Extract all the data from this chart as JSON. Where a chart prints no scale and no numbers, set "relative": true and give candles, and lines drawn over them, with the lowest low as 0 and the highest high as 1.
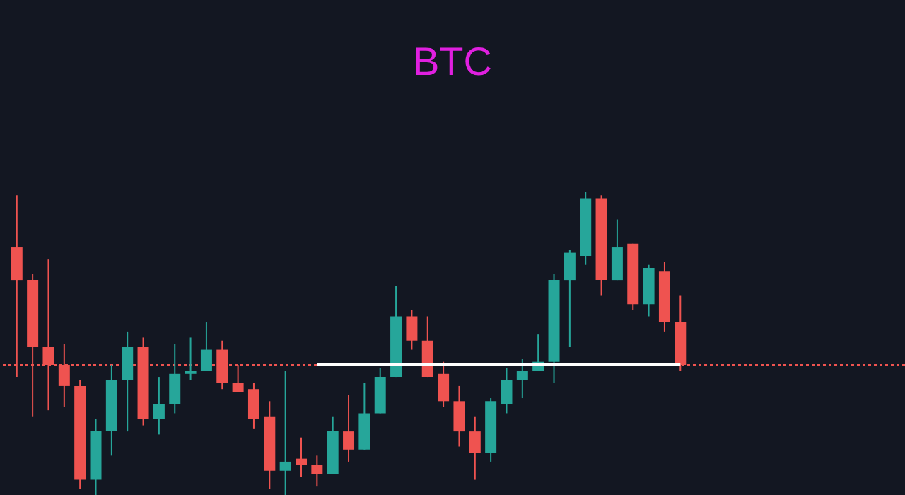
{
  "chart_data": {
    "type": "candlestick",
    "title": "BTC",
    "relative": true,
    "categories": [
      null,
      null,
      null,
      null,
      null,
      null,
      null,
      null,
      null,
      null,
      null,
      null,
      null,
      null,
      null,
      null,
      null,
      null,
      null,
      null,
      null,
      null,
      null,
      null,
      null,
      null,
      null,
      null,
      null,
      null,
      null,
      null,
      null,
      null,
      null,
      null,
      null,
      null,
      null,
      null,
      null,
      null,
      null
    ],
    "ohlc": [
      [
        0.82,
        0.99,
        0.39,
        0.71
      ],
      [
        0.71,
        0.73,
        0.26,
        0.49
      ],
      [
        0.49,
        0.78,
        0.28,
        0.43
      ],
      [
        0.43,
        0.5,
        0.29,
        0.36
      ],
      [
        0.36,
        0.38,
        0.02,
        0.05
      ],
      [
        0.05,
        0.25,
        0,
        0.21
      ],
      [
        0.21,
        0.43,
        0.13,
        0.38
      ],
      [
        0.38,
        0.54,
        0.21,
        0.49
      ],
      [
        0.49,
        0.52,
        0.23,
        0.25
      ],
      [
        0.25,
        0.39,
        0.2,
        0.3
      ],
      [
        0.3,
        0.5,
        0.27,
        0.4
      ],
      [
        0.4,
        0.52,
        0.38,
        0.41
      ],
      [
        0.41,
        0.57,
        0.41,
        0.48
      ],
      [
        0.48,
        0.51,
        0.35,
        0.37
      ],
      [
        0.37,
        0.43,
        0.34,
        0.34
      ],
      [
        0.35,
        0.37,
        0.22,
        0.25
      ],
      [
        0.26,
        0.31,
        0.02,
        0.08
      ],
      [
        0.08,
        0.41,
        0,
        0.11
      ],
      [
        0.12,
        0.19,
        0.06,
        0.1
      ],
      [
        0.1,
        0.13,
        0.03,
        0.07
      ],
      [
        0.07,
        0.26,
        0.07,
        0.21
      ],
      [
        0.21,
        0.33,
        0.11,
        0.15
      ],
      [
        0.15,
        0.37,
        0.15,
        0.27
      ],
      [
        0.27,
        0.42,
        0.27,
        0.39
      ],
      [
        0.39,
        0.69,
        0.39,
        0.59
      ],
      [
        0.59,
        0.61,
        0.48,
        0.51
      ],
      [
        0.51,
        0.59,
        0.39,
        0.39
      ],
      [
        0.4,
        0.44,
        0.29,
        0.31
      ],
      [
        0.31,
        0.36,
        0.16,
        0.21
      ],
      [
        0.21,
        0.26,
        0.05,
        0.14
      ],
      [
        0.14,
        0.32,
        0.11,
        0.31
      ],
      [
        0.3,
        0.42,
        0.27,
        0.38
      ],
      [
        0.38,
        0.45,
        0.32,
        0.41
      ],
      [
        0.41,
        0.53,
        0.41,
        0.44
      ],
      [
        0.44,
        0.73,
        0.37,
        0.71
      ],
      [
        0.71,
        0.81,
        0.49,
        0.8
      ],
      [
        0.79,
        1,
        0.76,
        0.98
      ],
      [
        0.98,
        0.99,
        0.66,
        0.71
      ],
      [
        0.71,
        0.91,
        0.71,
        0.82
      ],
      [
        0.83,
        0.83,
        0.61,
        0.63
      ],
      [
        0.63,
        0.76,
        0.59,
        0.75
      ],
      [
        0.74,
        0.77,
        0.54,
        0.57
      ],
      [
        0.57,
        0.66,
        0.41,
        0.43
      ]
    ],
    "colors": [
      "#ef5350",
      "#ef5350",
      "#ef5350",
      "#ef5350",
      "#ef5350",
      "#26a69a",
      "#26a69a",
      "#26a69a",
      "#ef5350",
      "#26a69a",
      "#26a69a",
      "#26a69a",
      "#26a69a",
      "#ef5350",
      "#ef5350",
      "#ef5350",
      "#ef5350",
      "#26a69a",
      "#ef5350",
      "#ef5350",
      "#26a69a",
      "#ef5350",
      "#26a69a",
      "#26a69a",
      "#26a69a",
      "#ef5350",
      "#ef5350",
      "#ef5350",
      "#ef5350",
      "#ef5350",
      "#26a69a",
      "#26a69a",
      "#26a69a",
      "#26a69a",
      "#26a69a",
      "#26a69a",
      "#26a69a",
      "#ef5350",
      "#26a69a",
      "#ef5350",
      "#26a69a",
      "#ef5350",
      "#ef5350"
    ],
    "series": [
      {
        "type": "line",
        "color": "#ffffff",
        "values": [
          null,
          null,
          null,
          null,
          null,
          null,
          null,
          null,
          null,
          null,
          null,
          null,
          null,
          null,
          null,
          null,
          null,
          null,
          null,
          0.43,
          0.43,
          0.43,
          0.43,
          0.43,
          0.43,
          0.43,
          0.43,
          0.43,
          0.43,
          0.43,
          0.43,
          0.43,
          0.43,
          0.43,
          0.43,
          0.43,
          0.43,
          0.43,
          0.43,
          0.43,
          0.43,
          0.43,
          0.43
        ]
      }
    ],
    "ref_lines": [
      {
        "axis": "y",
        "value": 0.43,
        "color": "#ef5350",
        "line_style": "dotted"
      }
    ]
  }
}
